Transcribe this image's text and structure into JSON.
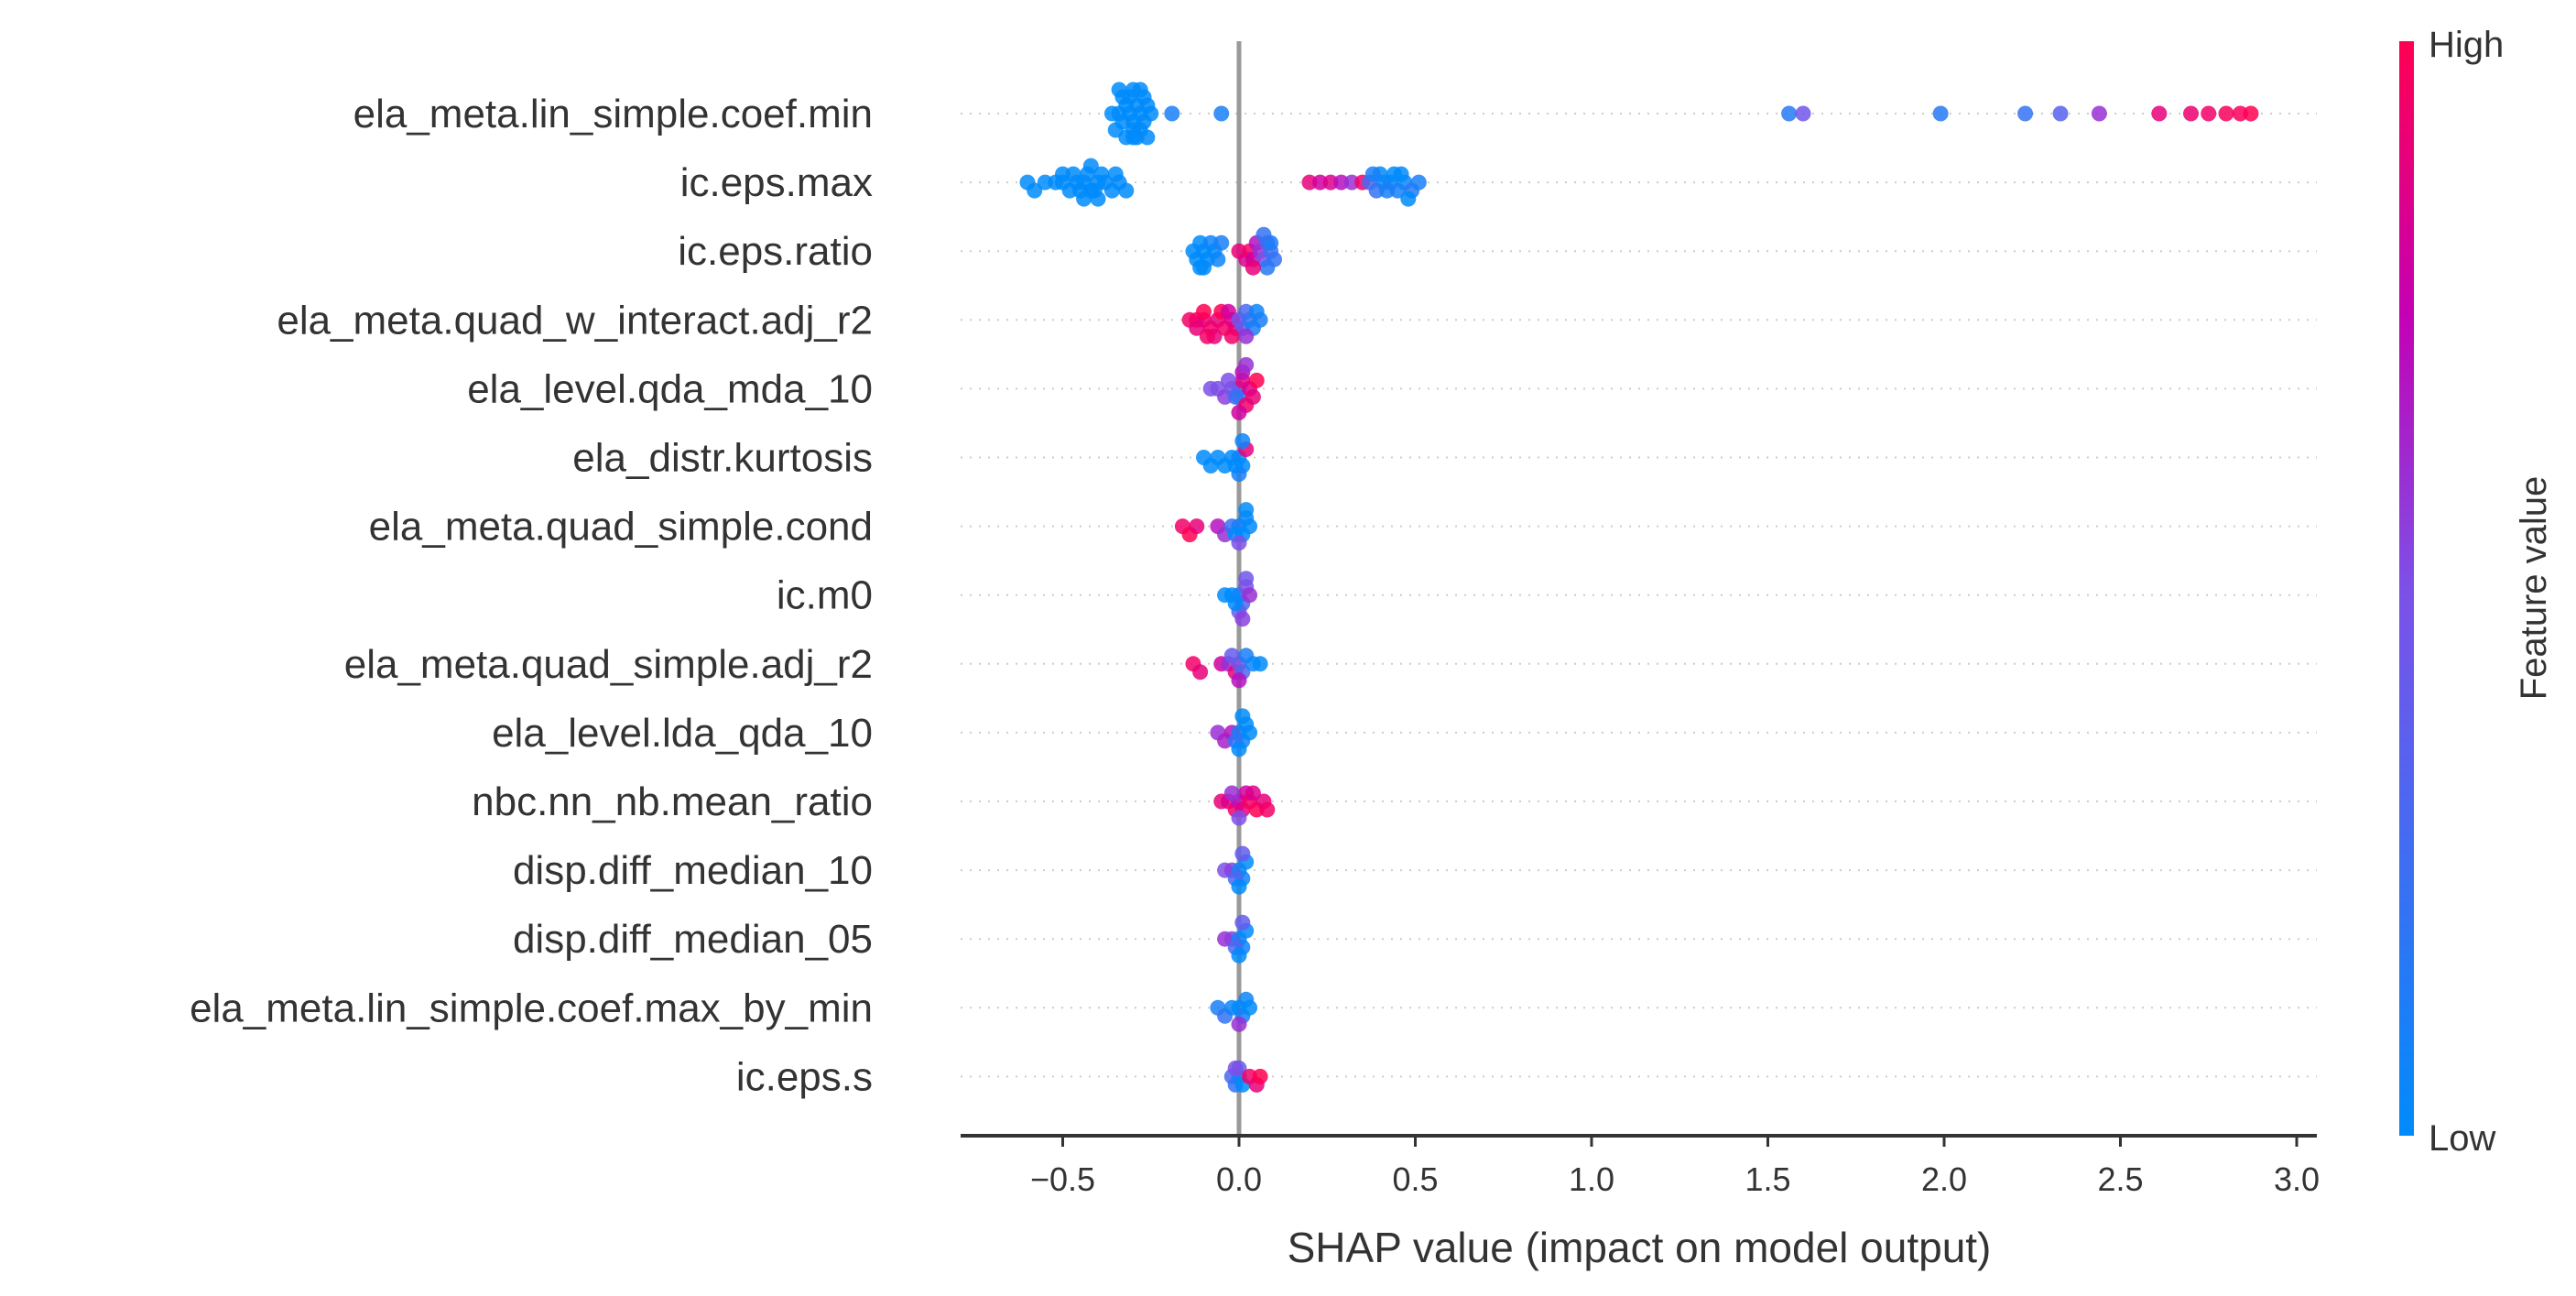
{
  "chart_data": {
    "type": "scatter",
    "subtype": "shap-beeswarm",
    "xlabel": "SHAP value (impact on model output)",
    "xlim": [
      -0.8,
      3.05
    ],
    "xticks": [
      -0.5,
      0.0,
      0.5,
      1.0,
      1.5,
      2.0,
      2.5,
      3.0
    ],
    "xtick_labels": [
      "−0.5",
      "0.0",
      "0.5",
      "1.0",
      "1.5",
      "2.0",
      "2.5",
      "3.0"
    ],
    "colorbar": {
      "title": "Feature value",
      "high_label": "High",
      "low_label": "Low",
      "low_color": "#008bfb",
      "high_color": "#ff0052"
    },
    "zero_line_color": "#999999",
    "features": [
      {
        "name": "ela_meta.lin_simple.coef.min",
        "points": [
          [
            -0.36,
            0
          ],
          [
            -0.34,
            0
          ],
          [
            -0.33,
            0
          ],
          [
            -0.32,
            0
          ],
          [
            -0.31,
            0
          ],
          [
            -0.3,
            0
          ],
          [
            -0.29,
            0
          ],
          [
            -0.28,
            0
          ],
          [
            -0.27,
            0
          ],
          [
            -0.26,
            0
          ],
          [
            -0.35,
            0
          ],
          [
            -0.3,
            0
          ],
          [
            -0.28,
            0
          ],
          [
            -0.25,
            0
          ],
          [
            -0.33,
            0
          ],
          [
            -0.31,
            0
          ],
          [
            -0.27,
            0
          ],
          [
            -0.29,
            0
          ],
          [
            -0.32,
            0
          ],
          [
            -0.3,
            0
          ],
          [
            -0.26,
            0
          ],
          [
            -0.34,
            0
          ],
          [
            -0.28,
            0
          ],
          [
            -0.3,
            0
          ],
          [
            -0.19,
            0.1
          ],
          [
            -0.05,
            0.1
          ],
          [
            1.56,
            0.15
          ],
          [
            1.6,
            0.45
          ],
          [
            1.99,
            0.15
          ],
          [
            2.23,
            0.2
          ],
          [
            2.33,
            0.35
          ],
          [
            2.44,
            0.6
          ],
          [
            2.61,
            0.9
          ],
          [
            2.7,
            0.92
          ],
          [
            2.75,
            0.95
          ],
          [
            2.8,
            0.97
          ],
          [
            2.84,
            0.98
          ],
          [
            2.87,
            1.0
          ]
        ]
      },
      {
        "name": "ic.eps.max",
        "points": [
          [
            -0.6,
            0.0
          ],
          [
            -0.58,
            0.0
          ],
          [
            -0.55,
            0.0
          ],
          [
            -0.52,
            0.0
          ],
          [
            -0.5,
            0.0
          ],
          [
            -0.48,
            0.0
          ],
          [
            -0.46,
            0.0
          ],
          [
            -0.44,
            0.0
          ],
          [
            -0.42,
            0.0
          ],
          [
            -0.4,
            0.0
          ],
          [
            -0.38,
            0.0
          ],
          [
            -0.36,
            0.0
          ],
          [
            -0.34,
            0.0
          ],
          [
            -0.32,
            0.0
          ],
          [
            -0.45,
            0.0
          ],
          [
            -0.43,
            0.0
          ],
          [
            -0.41,
            0.0
          ],
          [
            -0.5,
            0.0
          ],
          [
            -0.47,
            0.0
          ],
          [
            -0.39,
            0.0
          ],
          [
            -0.35,
            0.0
          ],
          [
            -0.44,
            0.0
          ],
          [
            -0.42,
            0.0
          ],
          [
            -0.4,
            0.0
          ],
          [
            0.2,
            0.9
          ],
          [
            0.23,
            0.8
          ],
          [
            0.26,
            0.85
          ],
          [
            0.29,
            0.7
          ],
          [
            0.32,
            0.6
          ],
          [
            0.35,
            0.95
          ],
          [
            0.37,
            0.3
          ],
          [
            0.39,
            0.2
          ],
          [
            0.41,
            0.1
          ],
          [
            0.43,
            0.05
          ],
          [
            0.45,
            0.1
          ],
          [
            0.47,
            0.05
          ],
          [
            0.49,
            0.15
          ],
          [
            0.51,
            0.1
          ],
          [
            0.44,
            0.0
          ],
          [
            0.42,
            0.1
          ],
          [
            0.4,
            0.0
          ],
          [
            0.46,
            0.0
          ],
          [
            0.38,
            0.1
          ],
          [
            0.48,
            0.0
          ]
        ]
      },
      {
        "name": "ic.eps.ratio",
        "points": [
          [
            -0.13,
            0.0
          ],
          [
            -0.12,
            0.0
          ],
          [
            -0.11,
            0.0
          ],
          [
            -0.1,
            0.0
          ],
          [
            -0.09,
            0.0
          ],
          [
            -0.08,
            0.05
          ],
          [
            -0.07,
            0.0
          ],
          [
            -0.06,
            0.05
          ],
          [
            -0.05,
            0.1
          ],
          [
            -0.1,
            0.0
          ],
          [
            -0.11,
            0.0
          ],
          [
            0.0,
            0.9
          ],
          [
            0.02,
            0.85
          ],
          [
            0.03,
            0.95
          ],
          [
            0.04,
            0.8
          ],
          [
            0.05,
            0.7
          ],
          [
            0.06,
            0.6
          ],
          [
            0.07,
            0.5
          ],
          [
            0.08,
            0.3
          ],
          [
            0.09,
            0.25
          ],
          [
            0.1,
            0.2
          ],
          [
            0.08,
            0.15
          ],
          [
            0.09,
            0.1
          ],
          [
            0.07,
            0.2
          ],
          [
            0.04,
            0.9
          ]
        ]
      },
      {
        "name": "ela_meta.quad_w_interact.adj_r2",
        "points": [
          [
            -0.14,
            0.95
          ],
          [
            -0.12,
            0.95
          ],
          [
            -0.1,
            0.9
          ],
          [
            -0.08,
            0.95
          ],
          [
            -0.06,
            0.9
          ],
          [
            -0.04,
            0.95
          ],
          [
            -0.02,
            0.85
          ],
          [
            -0.01,
            0.9
          ],
          [
            -0.05,
            1.0
          ],
          [
            -0.1,
            1.0
          ],
          [
            -0.07,
            0.9
          ],
          [
            -0.03,
            0.8
          ],
          [
            0.0,
            0.5
          ],
          [
            0.01,
            0.4
          ],
          [
            0.02,
            0.3
          ],
          [
            0.03,
            0.2
          ],
          [
            0.04,
            0.1
          ],
          [
            0.05,
            0.05
          ],
          [
            0.06,
            0.1
          ],
          [
            -0.02,
            0.95
          ],
          [
            -0.12,
            0.9
          ],
          [
            -0.09,
            0.95
          ],
          [
            0.02,
            0.6
          ]
        ]
      },
      {
        "name": "ela_level.qda_mda_10",
        "points": [
          [
            -0.08,
            0.5
          ],
          [
            -0.06,
            0.5
          ],
          [
            -0.04,
            0.55
          ],
          [
            -0.02,
            0.45
          ],
          [
            0.0,
            0.4
          ],
          [
            -0.01,
            0.3
          ],
          [
            0.0,
            0.2
          ],
          [
            0.01,
            0.9
          ],
          [
            0.02,
            0.95
          ],
          [
            0.03,
            0.85
          ],
          [
            0.04,
            0.9
          ],
          [
            0.05,
            1.0
          ],
          [
            0.01,
            0.7
          ],
          [
            -0.03,
            0.5
          ],
          [
            0.0,
            0.8
          ],
          [
            0.02,
            0.6
          ]
        ]
      },
      {
        "name": "ela_distr.kurtosis",
        "points": [
          [
            -0.1,
            0.0
          ],
          [
            -0.08,
            0.0
          ],
          [
            -0.06,
            0.0
          ],
          [
            -0.04,
            0.0
          ],
          [
            -0.02,
            0.0
          ],
          [
            0.0,
            0.05
          ],
          [
            0.01,
            0.0
          ],
          [
            0.02,
            0.9
          ],
          [
            0.0,
            0.1
          ],
          [
            -0.01,
            0.0
          ],
          [
            0.01,
            0.05
          ]
        ]
      },
      {
        "name": "ela_meta.quad_simple.cond",
        "points": [
          [
            -0.16,
            0.95
          ],
          [
            -0.14,
            1.0
          ],
          [
            -0.12,
            0.9
          ],
          [
            -0.06,
            0.7
          ],
          [
            -0.04,
            0.6
          ],
          [
            -0.02,
            0.2
          ],
          [
            0.0,
            0.1
          ],
          [
            0.01,
            0.0
          ],
          [
            0.02,
            0.05
          ],
          [
            0.03,
            0.0
          ],
          [
            -0.01,
            0.0
          ],
          [
            0.0,
            0.5
          ],
          [
            0.02,
            0.0
          ]
        ]
      },
      {
        "name": "ic.m0",
        "points": [
          [
            -0.04,
            0.0
          ],
          [
            -0.02,
            0.0
          ],
          [
            0.0,
            0.05
          ],
          [
            0.01,
            0.3
          ],
          [
            0.02,
            0.5
          ],
          [
            0.03,
            0.6
          ],
          [
            0.0,
            0.4
          ],
          [
            -0.01,
            0.0
          ],
          [
            0.02,
            0.45
          ],
          [
            0.01,
            0.55
          ]
        ]
      },
      {
        "name": "ela_meta.quad_simple.adj_r2",
        "points": [
          [
            -0.13,
            0.95
          ],
          [
            -0.11,
            0.9
          ],
          [
            -0.05,
            0.8
          ],
          [
            -0.03,
            0.6
          ],
          [
            -0.01,
            0.9
          ],
          [
            0.0,
            0.5
          ],
          [
            0.01,
            0.3
          ],
          [
            0.02,
            0.1
          ],
          [
            0.04,
            0.05
          ],
          [
            0.06,
            0.0
          ],
          [
            0.0,
            0.7
          ],
          [
            -0.02,
            0.4
          ]
        ]
      },
      {
        "name": "ela_level.lda_qda_10",
        "points": [
          [
            -0.06,
            0.6
          ],
          [
            -0.04,
            0.65
          ],
          [
            -0.02,
            0.7
          ],
          [
            0.0,
            0.1
          ],
          [
            0.01,
            0.05
          ],
          [
            0.02,
            0.0
          ],
          [
            0.03,
            0.0
          ],
          [
            -0.01,
            0.2
          ],
          [
            0.0,
            0.0
          ],
          [
            0.01,
            0.0
          ]
        ]
      },
      {
        "name": "nbc.nn_nb.mean_ratio",
        "points": [
          [
            -0.05,
            0.9
          ],
          [
            -0.03,
            0.85
          ],
          [
            -0.01,
            0.95
          ],
          [
            0.0,
            0.7
          ],
          [
            0.01,
            0.9
          ],
          [
            0.02,
            0.8
          ],
          [
            0.03,
            0.95
          ],
          [
            0.05,
            1.0
          ],
          [
            0.07,
            0.9
          ],
          [
            0.08,
            0.95
          ],
          [
            -0.02,
            0.6
          ],
          [
            0.0,
            0.5
          ],
          [
            0.04,
            0.85
          ]
        ]
      },
      {
        "name": "disp.diff_median_10",
        "points": [
          [
            -0.04,
            0.5
          ],
          [
            -0.02,
            0.55
          ],
          [
            0.0,
            0.1
          ],
          [
            0.01,
            0.05
          ],
          [
            0.02,
            0.0
          ],
          [
            -0.01,
            0.3
          ],
          [
            0.0,
            0.0
          ],
          [
            0.01,
            0.4
          ]
        ]
      },
      {
        "name": "disp.diff_median_05",
        "points": [
          [
            -0.04,
            0.6
          ],
          [
            -0.02,
            0.55
          ],
          [
            0.0,
            0.1
          ],
          [
            0.01,
            0.05
          ],
          [
            0.02,
            0.0
          ],
          [
            -0.01,
            0.3
          ],
          [
            0.0,
            0.0
          ],
          [
            0.01,
            0.4
          ]
        ]
      },
      {
        "name": "ela_meta.lin_simple.coef.max_by_min",
        "points": [
          [
            -0.06,
            0.1
          ],
          [
            -0.04,
            0.2
          ],
          [
            -0.02,
            0.05
          ],
          [
            0.0,
            0.0
          ],
          [
            0.01,
            0.1
          ],
          [
            0.02,
            0.05
          ],
          [
            0.03,
            0.0
          ],
          [
            0.0,
            0.6
          ]
        ]
      },
      {
        "name": "ic.eps.s",
        "points": [
          [
            -0.02,
            0.3
          ],
          [
            -0.01,
            0.2
          ],
          [
            0.0,
            0.1
          ],
          [
            0.01,
            0.0
          ],
          [
            0.0,
            0.4
          ],
          [
            0.03,
            0.95
          ],
          [
            0.05,
            0.9
          ],
          [
            0.06,
            1.0
          ],
          [
            -0.01,
            0.5
          ]
        ]
      }
    ]
  }
}
